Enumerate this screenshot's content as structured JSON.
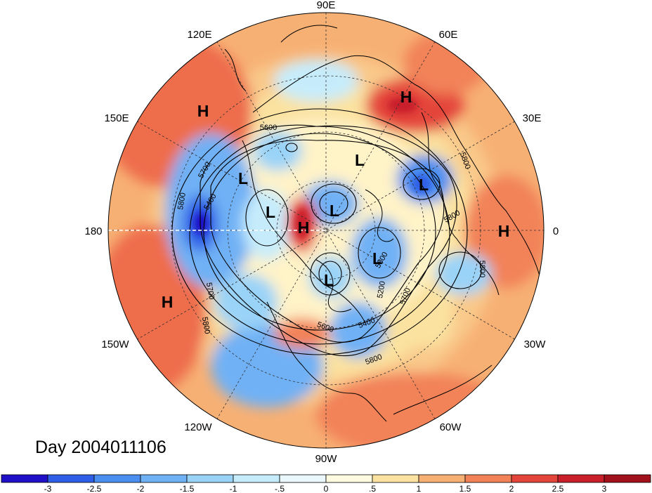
{
  "map": {
    "projection": "north polar stereographic",
    "longitude_labels": [
      {
        "text": "90E",
        "lon": 90
      },
      {
        "text": "60E",
        "lon": 60
      },
      {
        "text": "30E",
        "lon": 30
      },
      {
        "text": "0",
        "lon": 0
      },
      {
        "text": "30W",
        "lon": -30
      },
      {
        "text": "60W",
        "lon": -60
      },
      {
        "text": "90W",
        "lon": -90
      },
      {
        "text": "120W",
        "lon": -120
      },
      {
        "text": "150W",
        "lon": -150
      },
      {
        "text": "180",
        "lon": 180
      },
      {
        "text": "150E",
        "lon": 150
      },
      {
        "text": "120E",
        "lon": 120
      }
    ],
    "contour_labels": [
      "5600",
      "5700",
      "5400",
      "5800",
      "5800",
      "5800",
      "5800",
      "5700",
      "5800",
      "5200",
      "5400",
      "5800",
      "5700",
      "5800",
      "5600"
    ],
    "pressure_centers": [
      "H",
      "H",
      "H",
      "H",
      "L",
      "L",
      "L",
      "L",
      "L",
      "L",
      "L",
      "H"
    ],
    "day_label": "Day 2004011106",
    "colors": {
      "land_outline": "#000000",
      "grid": "#333333",
      "meridian_180": "#ffffff"
    }
  },
  "colorbar": {
    "tick_labels": [
      "-3",
      "-2.5",
      "-2",
      "-1.5",
      "-1",
      "-.5",
      "0",
      ".5",
      "1",
      "1.5",
      "2",
      "2.5",
      "3"
    ],
    "colors": [
      "#1f0fc6",
      "#2e5ee6",
      "#4a8ef0",
      "#6fb1f5",
      "#9ad3f8",
      "#c6ecfb",
      "#eaf8fd",
      "#fffbe0",
      "#fbe2a0",
      "#f7b074",
      "#f28258",
      "#e4453a",
      "#c81f2a",
      "#a0111c"
    ]
  }
}
